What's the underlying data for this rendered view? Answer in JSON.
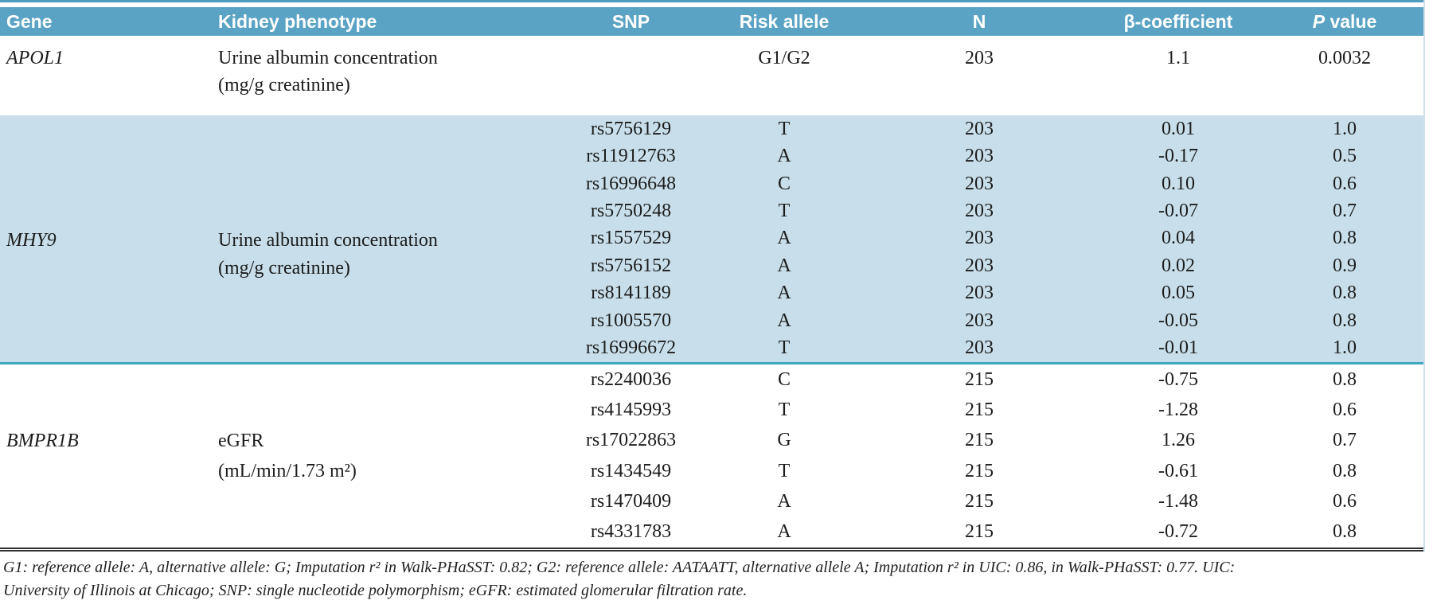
{
  "colors": {
    "header_bg": "#5aa3c4",
    "band_bg": "#c8dfeb",
    "separator_line": "#3fa9b9",
    "top_line": "#4c9abc",
    "bottom_line": "#2e2e2e"
  },
  "table": {
    "headers": {
      "gene": "Gene",
      "phenotype": "Kidney phenotype",
      "snp": "SNP",
      "risk_allele": "Risk allele",
      "n": "N",
      "beta": "β-coefficient",
      "p_italic": "P",
      "p_rest": " value"
    },
    "sections": [
      {
        "gene": "APOL1",
        "phenotype": [
          "Urine albumin concentration",
          "(mg/g creatinine)"
        ],
        "rows": [
          {
            "snp": "",
            "risk": "G1/G2",
            "n": "203",
            "beta": "1.1",
            "p": "0.0032"
          }
        ]
      },
      {
        "gene": "MHY9",
        "phenotype": [
          "Urine albumin concentration",
          "(mg/g creatinine)"
        ],
        "rows": [
          {
            "snp": "rs5756129",
            "risk": "T",
            "n": "203",
            "beta": "0.01",
            "p": "1.0"
          },
          {
            "snp": "rs11912763",
            "risk": "A",
            "n": "203",
            "beta": "-0.17",
            "p": "0.5"
          },
          {
            "snp": "rs16996648",
            "risk": "C",
            "n": "203",
            "beta": "0.10",
            "p": "0.6"
          },
          {
            "snp": "rs5750248",
            "risk": "T",
            "n": "203",
            "beta": "-0.07",
            "p": "0.7"
          },
          {
            "snp": "rs1557529",
            "risk": "A",
            "n": "203",
            "beta": "0.04",
            "p": "0.8"
          },
          {
            "snp": "rs5756152",
            "risk": "A",
            "n": "203",
            "beta": "0.02",
            "p": "0.9"
          },
          {
            "snp": "rs8141189",
            "risk": "A",
            "n": "203",
            "beta": "0.05",
            "p": "0.8"
          },
          {
            "snp": "rs1005570",
            "risk": "A",
            "n": "203",
            "beta": "-0.05",
            "p": "0.8"
          },
          {
            "snp": "rs16996672",
            "risk": "T",
            "n": "203",
            "beta": "-0.01",
            "p": "1.0"
          }
        ]
      },
      {
        "gene": "BMPR1B",
        "phenotype": [
          "eGFR",
          "(mL/min/1.73 m²)"
        ],
        "rows": [
          {
            "snp": "rs2240036",
            "risk": "C",
            "n": "215",
            "beta": "-0.75",
            "p": "0.8"
          },
          {
            "snp": "rs4145993",
            "risk": "T",
            "n": "215",
            "beta": "-1.28",
            "p": "0.6"
          },
          {
            "snp": "rs17022863",
            "risk": "G",
            "n": "215",
            "beta": "1.26",
            "p": "0.7"
          },
          {
            "snp": "rs1434549",
            "risk": "T",
            "n": "215",
            "beta": "-0.61",
            "p": "0.8"
          },
          {
            "snp": "rs1470409",
            "risk": "A",
            "n": "215",
            "beta": "-1.48",
            "p": "0.6"
          },
          {
            "snp": "rs4331783",
            "risk": "A",
            "n": "215",
            "beta": "-0.72",
            "p": "0.8"
          }
        ]
      }
    ],
    "footnote": [
      "G1: reference allele: A, alternative allele: G; Imputation r² in Walk-PHaSST: 0.82; G2: reference allele: AATAATT, alternative allele A; Imputation r² in UIC: 0.86, in Walk-PHaSST: 0.77. UIC:",
      "University of Illinois at Chicago; SNP: single nucleotide polymorphism; eGFR: estimated glomerular filtration rate."
    ]
  }
}
